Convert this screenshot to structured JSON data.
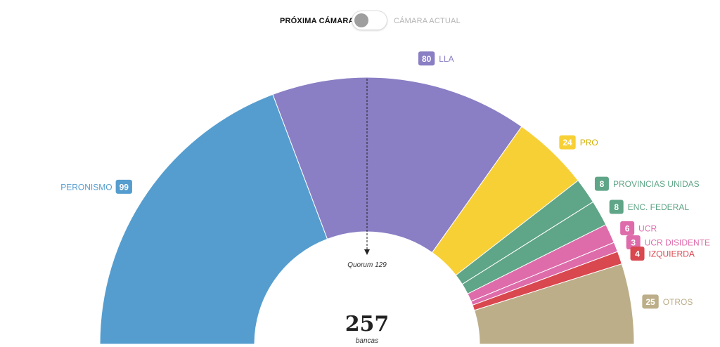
{
  "toggle": {
    "left_label": "PRÓXIMA CÁMARA",
    "right_label": "CÁMARA ACTUAL"
  },
  "chart_data": {
    "type": "parliament-semicircle",
    "total": 257,
    "total_label": "257",
    "total_caption": "bancas",
    "quorum_label": "Quorum 129",
    "quorum_value": 129,
    "series": [
      {
        "name": "PERONISMO",
        "label": "99",
        "value": 99,
        "color": "#559dcf"
      },
      {
        "name": "LLA",
        "label": "80",
        "value": 80,
        "color": "#8a7ec4"
      },
      {
        "name": "PRO",
        "label": "24",
        "value": 24,
        "color": "#f7d036"
      },
      {
        "name": "PROVINCIAS UNIDAS",
        "label": "8",
        "value": 8,
        "color": "#5fa587"
      },
      {
        "name": "ENC. FEDERAL",
        "label": "8",
        "value": 8,
        "color": "#5fa587"
      },
      {
        "name": "UCR",
        "label": "6",
        "value": 6,
        "color": "#de6cab"
      },
      {
        "name": "UCR DISIDENTE",
        "label": "3",
        "value": 3,
        "color": "#de6cab"
      },
      {
        "name": "IZQUIERDA",
        "label": "4",
        "value": 4,
        "color": "#d9474f"
      },
      {
        "name": "OTROS",
        "label": "25",
        "value": 25,
        "color": "#bcae88"
      }
    ]
  }
}
